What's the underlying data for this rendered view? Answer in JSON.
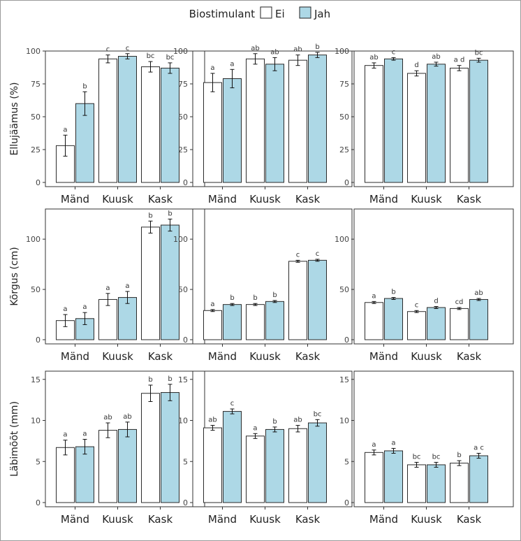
{
  "legend": {
    "title": "Biostimulant",
    "items": [
      {
        "label": "Ei",
        "color": "#ffffff"
      },
      {
        "label": "Jah",
        "color": "#add8e6"
      }
    ]
  },
  "chart_data": {
    "type": "bar",
    "categories": [
      "Mänd",
      "Kuusk",
      "Kask"
    ],
    "bar_stroke": "#2b2b2b",
    "rows": [
      {
        "ylabel": "Ellujäämus (%)",
        "ylim": [
          0,
          100
        ],
        "yticks": [
          0,
          25,
          50,
          75,
          100
        ],
        "panels": [
          {
            "series": [
              {
                "name": "Ei",
                "values": [
                  28,
                  94,
                  88
                ],
                "errors": [
                  8,
                  3,
                  4
                ],
                "letters": [
                  "a",
                  "c",
                  "bc"
                ]
              },
              {
                "name": "Jah",
                "values": [
                  60,
                  96,
                  87
                ],
                "errors": [
                  9,
                  2,
                  4
                ],
                "letters": [
                  "b",
                  "c",
                  "bc"
                ]
              }
            ]
          },
          {
            "series": [
              {
                "name": "Ei",
                "values": [
                  76,
                  94,
                  93
                ],
                "errors": [
                  7,
                  4,
                  4
                ],
                "letters": [
                  "a",
                  "ab",
                  "ab"
                ]
              },
              {
                "name": "Jah",
                "values": [
                  79,
                  90,
                  97
                ],
                "errors": [
                  7,
                  5,
                  2
                ],
                "letters": [
                  "a",
                  "ab",
                  "b"
                ]
              }
            ]
          },
          {
            "series": [
              {
                "name": "Ei",
                "values": [
                  89,
                  83,
                  87
                ],
                "errors": [
                  2,
                  2,
                  2
                ],
                "letters": [
                  "ab",
                  "d",
                  "a d"
                ]
              },
              {
                "name": "Jah",
                "values": [
                  94,
                  90,
                  93
                ],
                "errors": [
                  1,
                  1.5,
                  1.5
                ],
                "letters": [
                  "c",
                  "ab",
                  "bc"
                ]
              }
            ]
          }
        ]
      },
      {
        "ylabel": "Kõrgus (cm)",
        "ylim": [
          0,
          130
        ],
        "yticks": [
          0,
          50,
          100
        ],
        "panels": [
          {
            "series": [
              {
                "name": "Ei",
                "values": [
                  19,
                  40,
                  112
                ],
                "errors": [
                  6,
                  6,
                  6
                ],
                "letters": [
                  "a",
                  "a",
                  "b"
                ]
              },
              {
                "name": "Jah",
                "values": [
                  21,
                  42,
                  114
                ],
                "errors": [
                  6,
                  6,
                  6
                ],
                "letters": [
                  "a",
                  "a",
                  "b"
                ]
              }
            ]
          },
          {
            "series": [
              {
                "name": "Ei",
                "values": [
                  29,
                  35,
                  78
                ],
                "errors": [
                  1,
                  1,
                  1
                ],
                "letters": [
                  "a",
                  "b",
                  "c"
                ]
              },
              {
                "name": "Jah",
                "values": [
                  35,
                  38,
                  79
                ],
                "errors": [
                  1,
                  1,
                  1
                ],
                "letters": [
                  "b",
                  "b",
                  "c"
                ]
              }
            ]
          },
          {
            "series": [
              {
                "name": "Ei",
                "values": [
                  37,
                  28,
                  31
                ],
                "errors": [
                  1,
                  1,
                  1
                ],
                "letters": [
                  "a",
                  "c",
                  "cd"
                ]
              },
              {
                "name": "Jah",
                "values": [
                  41,
                  32,
                  40
                ],
                "errors": [
                  1,
                  1,
                  1
                ],
                "letters": [
                  "b",
                  "d",
                  "ab"
                ]
              }
            ]
          }
        ]
      },
      {
        "ylabel": "Läbimõõt (mm)",
        "ylim": [
          0,
          16
        ],
        "yticks": [
          0,
          5,
          10,
          15
        ],
        "panels": [
          {
            "series": [
              {
                "name": "Ei",
                "values": [
                  6.7,
                  8.8,
                  13.3
                ],
                "errors": [
                  0.9,
                  0.9,
                  1.0
                ],
                "letters": [
                  "a",
                  "ab",
                  "b"
                ]
              },
              {
                "name": "Jah",
                "values": [
                  6.8,
                  8.9,
                  13.4
                ],
                "errors": [
                  0.9,
                  0.9,
                  1.0
                ],
                "letters": [
                  "a",
                  "ab",
                  "b"
                ]
              }
            ]
          },
          {
            "series": [
              {
                "name": "Ei",
                "values": [
                  9.1,
                  8.1,
                  9.0
                ],
                "errors": [
                  0.3,
                  0.3,
                  0.4
                ],
                "letters": [
                  "ab",
                  "a",
                  "ab"
                ]
              },
              {
                "name": "Jah",
                "values": [
                  11.1,
                  8.9,
                  9.7
                ],
                "errors": [
                  0.3,
                  0.3,
                  0.4
                ],
                "letters": [
                  "c",
                  "b",
                  "bc"
                ]
              }
            ]
          },
          {
            "series": [
              {
                "name": "Ei",
                "values": [
                  6.1,
                  4.6,
                  4.8
                ],
                "errors": [
                  0.3,
                  0.3,
                  0.3
                ],
                "letters": [
                  "a",
                  "bc",
                  "b"
                ]
              },
              {
                "name": "Jah",
                "values": [
                  6.3,
                  4.6,
                  5.7
                ],
                "errors": [
                  0.3,
                  0.3,
                  0.3
                ],
                "letters": [
                  "a",
                  "bc",
                  "a c"
                ]
              }
            ]
          }
        ]
      }
    ]
  }
}
